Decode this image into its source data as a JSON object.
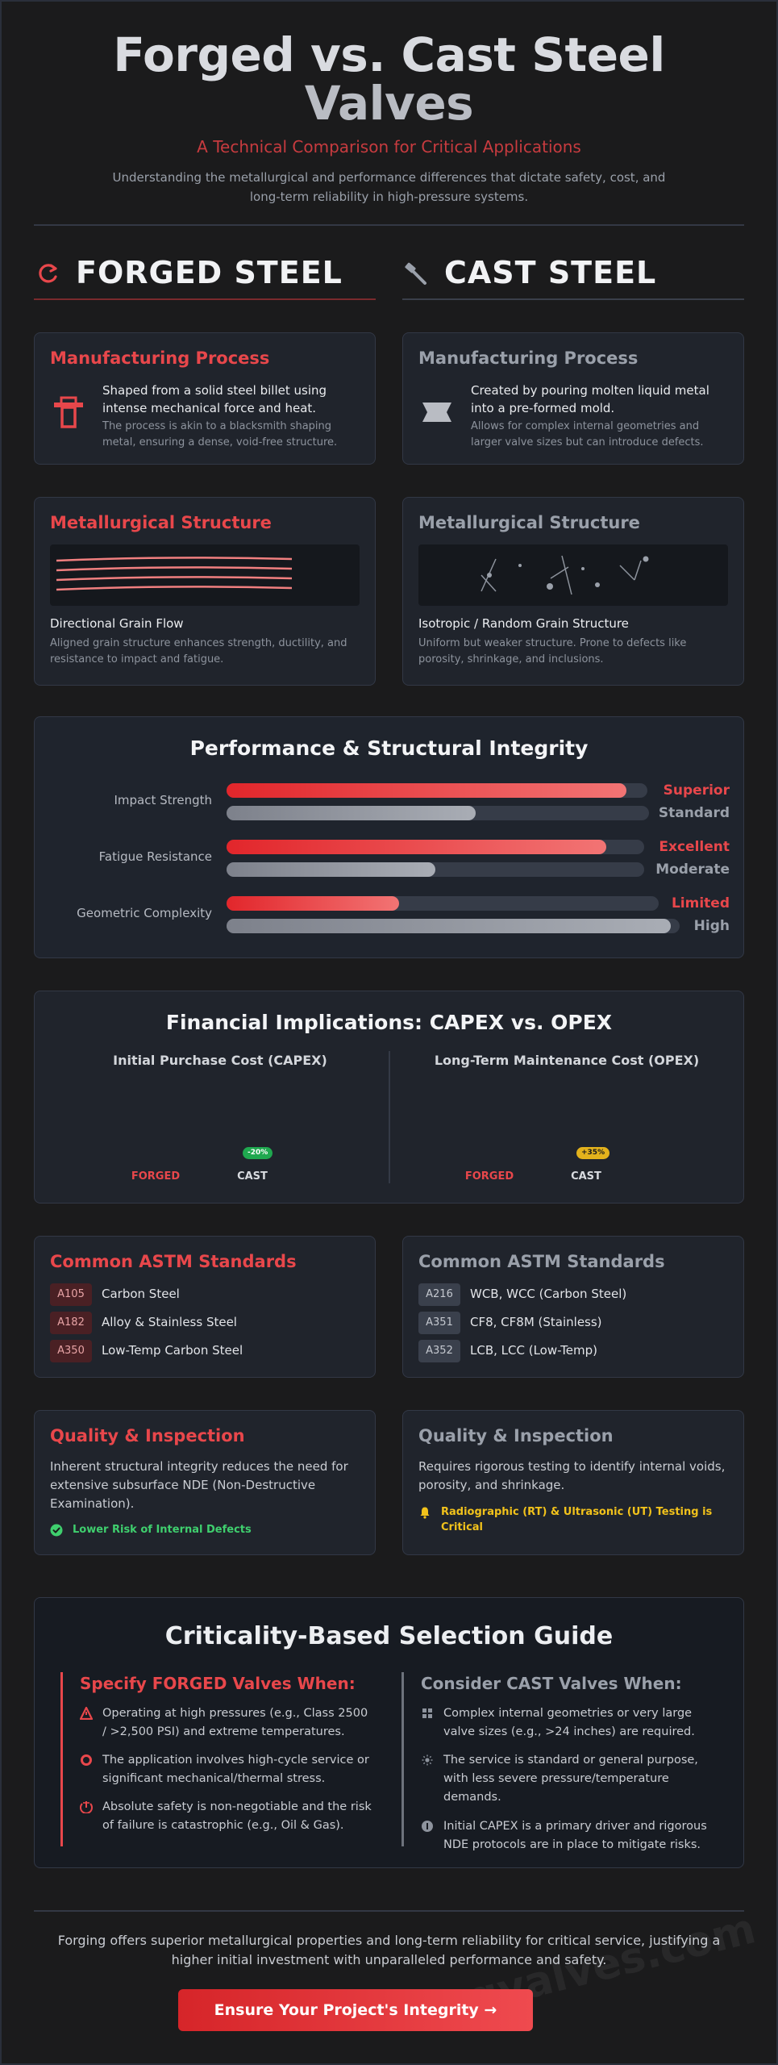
{
  "header": {
    "title_forged": "Forged vs. Cast Steel",
    "title_rest": "Valves",
    "subtitle": "A Technical Comparison for Critical Applications",
    "description": "Understanding the metallurgical and performance differences that dictate safety, cost, and long-term reliability in high-pressure systems."
  },
  "columns": {
    "forged": {
      "title": "FORGED STEEL",
      "icon": "refresh-icon",
      "accent": "#e8474b"
    },
    "cast": {
      "title": "CAST STEEL",
      "icon": "hammer-icon",
      "accent": "#9aa0aa"
    }
  },
  "manufacturing": {
    "forged": {
      "heading": "Manufacturing Process",
      "main": "Shaped from a solid steel billet using intense mechanical force and heat.",
      "note": "The process is akin to a blacksmith shaping metal, ensuring a dense, void-free structure."
    },
    "cast": {
      "heading": "Manufacturing Process",
      "main": "Created by pouring molten liquid metal into a pre-formed mold.",
      "note": "Allows for complex internal geometries and larger valve sizes but can introduce defects."
    }
  },
  "metallurgy": {
    "forged": {
      "heading": "Metallurgical Structure",
      "title": "Directional Grain Flow",
      "desc": "Aligned grain structure enhances strength, ductility, and resistance to impact and fatigue."
    },
    "cast": {
      "heading": "Metallurgical Structure",
      "title": "Isotropic / Random Grain Structure",
      "desc": "Uniform but weaker structure. Prone to defects like porosity, shrinkage, and inclusions."
    }
  },
  "performance": {
    "title": "Performance & Structural Integrity",
    "metrics": [
      {
        "label": "Impact Strength",
        "forged": 0.95,
        "forged_rating": "Superior",
        "cast": 0.59,
        "cast_rating": "Standard"
      },
      {
        "label": "Fatigue Resistance",
        "forged": 0.91,
        "forged_rating": "Excellent",
        "cast": 0.5,
        "cast_rating": "Moderate"
      },
      {
        "label": "Geometric Complexity",
        "forged": 0.4,
        "forged_rating": "Limited",
        "cast": 0.98,
        "cast_rating": "High"
      }
    ]
  },
  "financial": {
    "title": "Financial Implications: CAPEX vs. OPEX",
    "capex": {
      "title": "Initial Purchase Cost (CAPEX)",
      "forged_label": "FORGED",
      "cast_label": "CAST",
      "badge": "-20%"
    },
    "opex": {
      "title": "Long-Term Maintenance Cost (OPEX)",
      "forged_label": "FORGED",
      "cast_label": "CAST",
      "badge": "+35%"
    }
  },
  "standards": {
    "forged": {
      "heading": "Common ASTM Standards",
      "items": [
        {
          "code": "A105",
          "name": "Carbon Steel"
        },
        {
          "code": "A182",
          "name": "Alloy & Stainless Steel"
        },
        {
          "code": "A350",
          "name": "Low-Temp Carbon Steel"
        }
      ]
    },
    "cast": {
      "heading": "Common ASTM Standards",
      "items": [
        {
          "code": "A216",
          "name": "WCB, WCC (Carbon Steel)"
        },
        {
          "code": "A351",
          "name": "CF8, CF8M (Stainless)"
        },
        {
          "code": "A352",
          "name": "LCB, LCC (Low-Temp)"
        }
      ]
    }
  },
  "quality": {
    "forged": {
      "heading": "Quality & Inspection",
      "desc": "Inherent structural integrity reduces the need for extensive subsurface NDE (Non-Destructive Examination).",
      "flag": "Lower Risk of Internal Defects",
      "flag_icon": "check-circle-icon",
      "flag_color": "#3fcf6e"
    },
    "cast": {
      "heading": "Quality & Inspection",
      "desc": "Requires rigorous testing to identify internal voids, porosity, and shrinkage.",
      "flag": "Radiographic (RT) & Ultrasonic (UT) Testing is Critical",
      "flag_icon": "bell-icon",
      "flag_color": "#f2c21b"
    }
  },
  "guide": {
    "title": "Criticality-Based Selection Guide",
    "forged": {
      "heading": "Specify FORGED Valves When:",
      "items": [
        {
          "icon": "warning-triangle-icon",
          "text": "Operating at high pressures (e.g., Class 2500 / >2,500 PSI) and extreme temperatures."
        },
        {
          "icon": "cycle-icon",
          "text": "The application involves high-cycle service or significant mechanical/thermal stress."
        },
        {
          "icon": "shield-alert-icon",
          "text": "Absolute safety is non-negotiable and the risk of failure is catastrophic (e.g., Oil & Gas)."
        }
      ]
    },
    "cast": {
      "heading": "Consider CAST Valves When:",
      "items": [
        {
          "icon": "grid-icon",
          "text": "Complex internal geometries or very large valve sizes (e.g., >24 inches) are required."
        },
        {
          "icon": "sun-icon",
          "text": "The service is standard or general purpose, with less severe pressure/temperature demands."
        },
        {
          "icon": "coin-icon",
          "text": "Initial CAPEX is a primary driver and rigorous NDE protocols are in place to mitigate risks."
        }
      ]
    }
  },
  "footer": {
    "summary": "Forging offers superior metallurgical properties and long-term reliability for critical service, justifying a higher initial investment with unparalleled performance and safety.",
    "cta": "Ensure Your Project's Integrity  →",
    "watermark": "ogvalves.com"
  }
}
